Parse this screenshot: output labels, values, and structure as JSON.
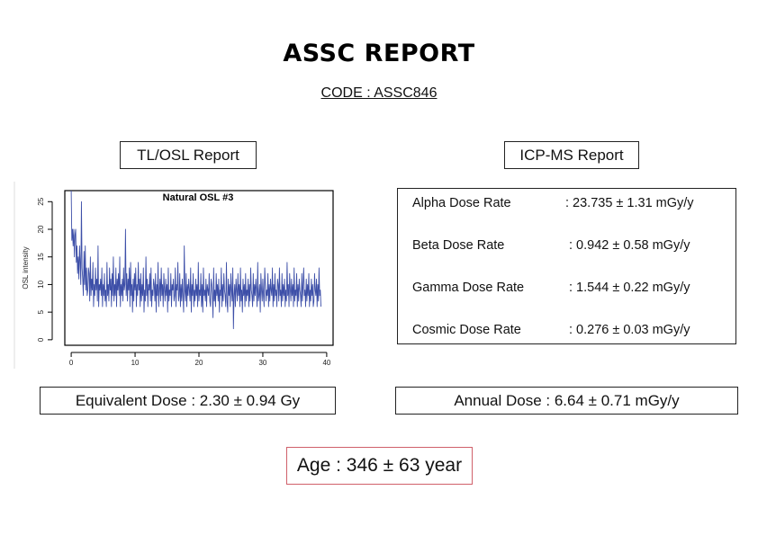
{
  "header": {
    "title": "ASSC REPORT",
    "code": "CODE : ASSC846"
  },
  "sections": {
    "tl_osl": "TL/OSL Report",
    "icp_ms": "ICP-MS Report"
  },
  "chart_data": {
    "type": "line",
    "title": "Natural OSL #3",
    "xlabel": "",
    "ylabel": "OSL intensity",
    "xlim": [
      -1,
      41
    ],
    "ylim": [
      -1,
      27
    ],
    "x_ticks": [
      "0",
      "10",
      "20",
      "30",
      "40"
    ],
    "y_ticks": [
      "0",
      "5",
      "10",
      "15",
      "20",
      "25"
    ],
    "series_color": "#3d4fa8",
    "series": [
      {
        "x_start": 0,
        "x_step": 0.1,
        "values": [
          27,
          18,
          20,
          17,
          20,
          15,
          19,
          20,
          14,
          17,
          12,
          15,
          11,
          17,
          14,
          10,
          25,
          13,
          11,
          8,
          16,
          10,
          17,
          9,
          13,
          8,
          9,
          13,
          12,
          7,
          15,
          8,
          11,
          9,
          14,
          6,
          10,
          8,
          13,
          9,
          11,
          7,
          17,
          6,
          10,
          9,
          11,
          8,
          13,
          6,
          10,
          8,
          12,
          7,
          9,
          6,
          14,
          8,
          10,
          7,
          13,
          9,
          11,
          6,
          12,
          8,
          15,
          7,
          10,
          8,
          13,
          6,
          11,
          9,
          12,
          8,
          15,
          6,
          10,
          8,
          11,
          7,
          13,
          9,
          10,
          20,
          8,
          12,
          7,
          11,
          9,
          13,
          6,
          14,
          8,
          10,
          5,
          11,
          7,
          12,
          9,
          13,
          6,
          10,
          8,
          14,
          9,
          11,
          6,
          12,
          7,
          10,
          8,
          13,
          5,
          9,
          7,
          15,
          8,
          11,
          6,
          10,
          9,
          12,
          7,
          13,
          6,
          9,
          8,
          11,
          10,
          7,
          12,
          5,
          10,
          8,
          14,
          6,
          9,
          11,
          7,
          13,
          8,
          10,
          6,
          12,
          9,
          7,
          11,
          8,
          10,
          5,
          13,
          7,
          9,
          8,
          12,
          6,
          10,
          9,
          11,
          7,
          8,
          13,
          6,
          10,
          9,
          14,
          7,
          8,
          12,
          6,
          10,
          7,
          11,
          8,
          5,
          17,
          9,
          7,
          12,
          6,
          10,
          8,
          11,
          9,
          7,
          13,
          5,
          10,
          8,
          12,
          6,
          9,
          7,
          11,
          8,
          10,
          6,
          14,
          7,
          9,
          8,
          12,
          6,
          10,
          5,
          13,
          8,
          9,
          7,
          11,
          6,
          10,
          9,
          8,
          12,
          7,
          6,
          11,
          10,
          8,
          4,
          13,
          7,
          9,
          6,
          12,
          8,
          10,
          7,
          11,
          5,
          9,
          8,
          13,
          6,
          10,
          7,
          12,
          9,
          8,
          6,
          14,
          7,
          5,
          11,
          8,
          10,
          6,
          12,
          9,
          7,
          13,
          2,
          8,
          10,
          6,
          11,
          9,
          7,
          12,
          8,
          10,
          6,
          13,
          7,
          9,
          5,
          11,
          8,
          10,
          6,
          12,
          7,
          9,
          8,
          11,
          6,
          10,
          7,
          13,
          9,
          8,
          6,
          12,
          7,
          10,
          8,
          11,
          9,
          6,
          14,
          7,
          8,
          10,
          5,
          12,
          9,
          7,
          11,
          8,
          6,
          13,
          10,
          7,
          9,
          8,
          12,
          6,
          10,
          7,
          11,
          9,
          8,
          13,
          6,
          10,
          7,
          12,
          8,
          9,
          6,
          11,
          10,
          7,
          13,
          8,
          9,
          6,
          12,
          7,
          10,
          8,
          11,
          6,
          9,
          7,
          14,
          8,
          10,
          6,
          12,
          9,
          7,
          11,
          8,
          10,
          6,
          13,
          7,
          9,
          8,
          12,
          6,
          10,
          7,
          11,
          9,
          8,
          6,
          12,
          7,
          10,
          13,
          8,
          9,
          6,
          11,
          7,
          10,
          8,
          12,
          6,
          9,
          7,
          11,
          8,
          10,
          6,
          7,
          12,
          9,
          8,
          11,
          6,
          10,
          7,
          13,
          8,
          9,
          6
        ]
      }
    ]
  },
  "dose_rates": [
    {
      "label": "Alpha Dose Rate",
      "value": ": 23.735 ± 1.31 mGy/y"
    },
    {
      "label": "Beta Dose Rate",
      "value": ": 0.942 ± 0.58 mGy/y"
    },
    {
      "label": "Gamma Dose Rate",
      "value": ": 1.544 ± 0.22 mGy/y"
    },
    {
      "label": "Cosmic Dose Rate",
      "value": ": 0.276 ± 0.03 mGy/y"
    }
  ],
  "results": {
    "equivalent_dose": "Equivalent Dose : 2.30 ± 0.94 Gy",
    "annual_dose": "Annual Dose : 6.64 ± 0.71 mGy/y",
    "age": "Age : 346 ± 63 year"
  }
}
